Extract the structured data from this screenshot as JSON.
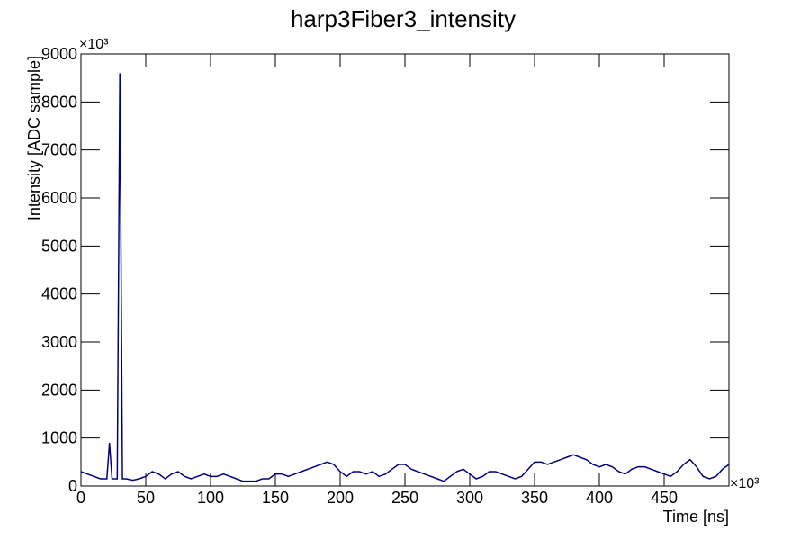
{
  "chart_data": {
    "type": "line",
    "title": "harp3Fiber3_intensity",
    "x_label": "Time [ns]",
    "y_label": "Intensity [ADC sample]",
    "x_multiplier": "×10³",
    "y_multiplier": "×10³",
    "xlim": [
      0,
      500
    ],
    "ylim": [
      0,
      9000
    ],
    "xticks": [
      0,
      50,
      100,
      150,
      200,
      250,
      300,
      350,
      400,
      450
    ],
    "yticks": [
      0,
      1000,
      2000,
      3000,
      4000,
      5000,
      6000,
      7000,
      8000,
      9000
    ],
    "series": [
      {
        "color": "#00007f",
        "x": [
          0,
          5,
          10,
          15,
          20,
          22,
          24,
          28,
          30,
          32,
          35,
          40,
          45,
          50,
          55,
          60,
          65,
          70,
          75,
          80,
          85,
          90,
          95,
          100,
          105,
          110,
          115,
          120,
          125,
          130,
          135,
          140,
          145,
          150,
          155,
          160,
          165,
          170,
          175,
          180,
          185,
          190,
          195,
          200,
          205,
          210,
          215,
          220,
          225,
          230,
          235,
          240,
          245,
          250,
          255,
          260,
          265,
          270,
          275,
          280,
          285,
          290,
          295,
          300,
          305,
          310,
          315,
          320,
          325,
          330,
          335,
          340,
          345,
          350,
          355,
          360,
          365,
          370,
          375,
          380,
          385,
          390,
          395,
          400,
          405,
          410,
          415,
          420,
          425,
          430,
          435,
          440,
          445,
          450,
          455,
          460,
          465,
          470,
          475,
          480,
          485,
          490,
          495,
          500
        ],
        "values": [
          300,
          250,
          200,
          150,
          150,
          900,
          150,
          150,
          8600,
          150,
          150,
          120,
          150,
          200,
          300,
          250,
          150,
          250,
          300,
          200,
          150,
          200,
          250,
          200,
          200,
          250,
          200,
          150,
          100,
          100,
          100,
          150,
          150,
          250,
          250,
          200,
          250,
          300,
          350,
          400,
          450,
          500,
          450,
          300,
          200,
          300,
          300,
          250,
          300,
          200,
          250,
          350,
          450,
          450,
          350,
          300,
          250,
          200,
          150,
          100,
          200,
          300,
          350,
          250,
          150,
          200,
          300,
          300,
          250,
          200,
          150,
          200,
          350,
          500,
          500,
          450,
          500,
          550,
          600,
          650,
          600,
          550,
          450,
          400,
          450,
          400,
          300,
          250,
          350,
          400,
          400,
          350,
          300,
          250,
          200,
          300,
          450,
          550,
          400,
          200,
          150,
          200,
          350,
          450
        ]
      }
    ]
  }
}
